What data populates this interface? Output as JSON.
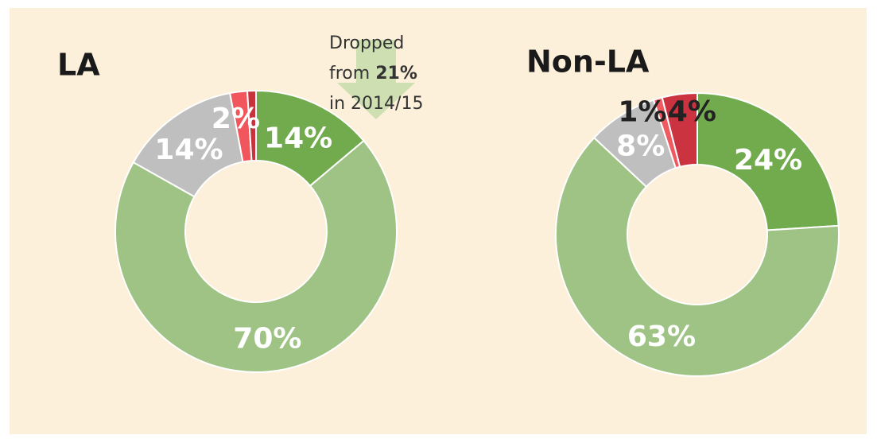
{
  "chart_data": [
    {
      "type": "donut",
      "title": "LA",
      "categories": [
        null,
        null,
        null,
        null,
        null
      ],
      "values": [
        14,
        70,
        14,
        2,
        1
      ],
      "value_labels": [
        "14%",
        "70%",
        "14%",
        "2%",
        null
      ],
      "colors": [
        "#72ab4e",
        "#9ec384",
        "#bfbfbf",
        "#f0565c",
        "#c8323c"
      ],
      "annotation": [
        "Dropped",
        "from ",
        "21%",
        "in 2014/15"
      ]
    },
    {
      "type": "donut",
      "title": "Non-LA",
      "categories": [
        null,
        null,
        null,
        null,
        null
      ],
      "values": [
        24,
        63,
        8,
        1,
        4
      ],
      "value_labels": [
        "24%",
        "63%",
        "8%",
        "1%",
        "4%"
      ],
      "colors": [
        "#72ab4e",
        "#9ec384",
        "#bfbfbf",
        "#ee5a5f",
        "#cc3340"
      ]
    }
  ]
}
